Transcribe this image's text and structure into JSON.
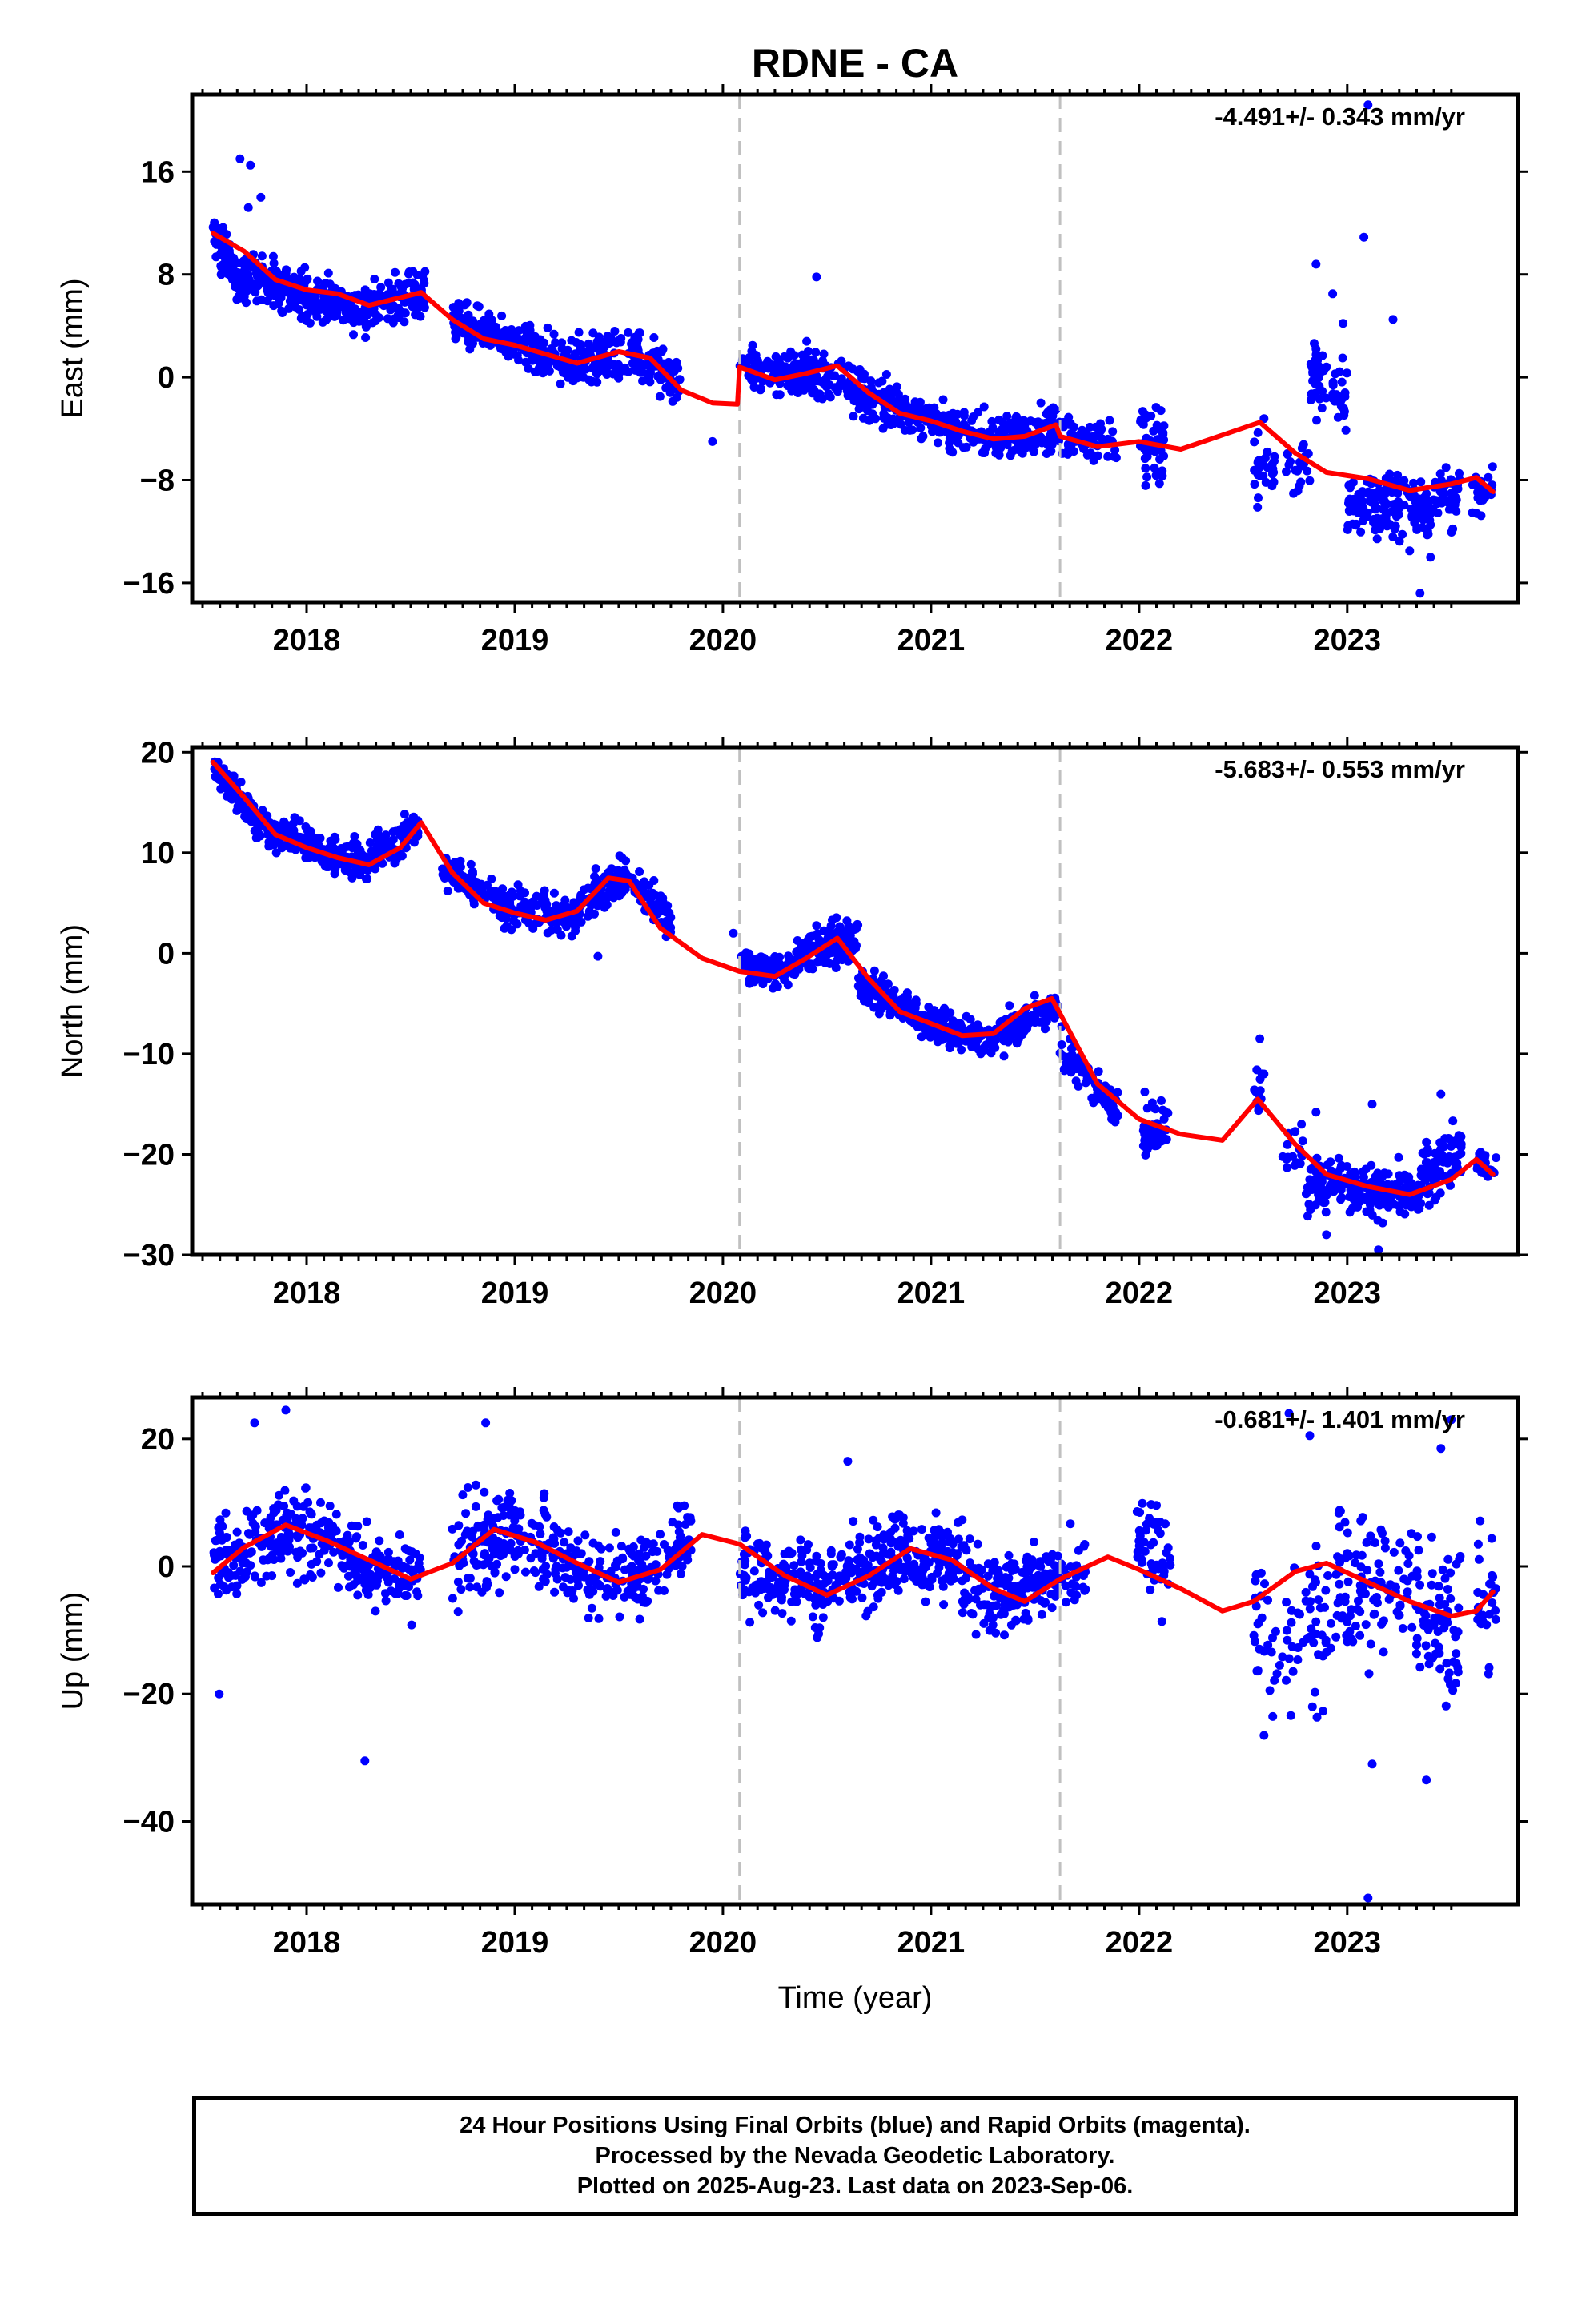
{
  "title": "RDNE - CA",
  "xlabel": "Time (year)",
  "footer": {
    "line1": "24 Hour Positions Using Final Orbits (blue) and Rapid Orbits (magenta).",
    "line2": "Processed by the Nevada Geodetic Laboratory.",
    "line3": "Plotted on 2025-Aug-23. Last data on 2023-Sep-06."
  },
  "colors": {
    "points": "#0000ff",
    "fit": "#ff0000",
    "steps": "#c0c0c0",
    "axis": "#000000"
  },
  "chart_data": [
    {
      "type": "scatter",
      "ylabel": "East (mm)",
      "annotation": "-4.491+/- 0.343 mm/yr",
      "xlim": [
        2017.45,
        2023.82
      ],
      "ylim": [
        -17.5,
        22
      ],
      "yticks": [
        -16,
        -8,
        0,
        8,
        16
      ],
      "xticks": [
        2018,
        2019,
        2020,
        2021,
        2022,
        2023
      ],
      "step_lines": [
        2020.08,
        2021.62
      ],
      "fit": {
        "x": [
          2017.55,
          2017.7,
          2017.85,
          2018.0,
          2018.15,
          2018.3,
          2018.45,
          2018.55,
          2018.7,
          2018.85,
          2019.0,
          2019.15,
          2019.3,
          2019.5,
          2019.65,
          2019.8,
          2019.95,
          2020.07,
          2020.08,
          2020.25,
          2020.4,
          2020.55,
          2020.7,
          2020.85,
          2021.0,
          2021.15,
          2021.3,
          2021.45,
          2021.6,
          2021.62,
          2021.8,
          2022.0,
          2022.2,
          2022.4,
          2022.58,
          2022.75,
          2022.9,
          2023.1,
          2023.3,
          2023.5,
          2023.62,
          2023.7
        ],
        "y": [
          11.2,
          9.8,
          7.6,
          6.8,
          6.5,
          5.6,
          6.2,
          6.6,
          4.5,
          3.0,
          2.5,
          1.8,
          1.1,
          2.0,
          1.5,
          -1.0,
          -2.0,
          -2.1,
          0.8,
          -0.2,
          0.3,
          0.9,
          -1.2,
          -2.8,
          -3.4,
          -4.2,
          -4.8,
          -4.6,
          -3.7,
          -4.6,
          -5.4,
          -5.0,
          -5.6,
          -4.5,
          -3.5,
          -5.9,
          -7.4,
          -7.9,
          -8.8,
          -8.3,
          -7.8,
          -8.9
        ]
      },
      "clusters": [
        [
          2017.55,
          2017.7,
          11.0,
          7.0,
          1.2,
          90
        ],
        [
          2017.7,
          2018.0,
          7.8,
          6.6,
          1.3,
          140
        ],
        [
          2018.0,
          2018.3,
          6.2,
          5.2,
          1.2,
          130
        ],
        [
          2018.3,
          2018.57,
          5.6,
          6.7,
          1.3,
          110
        ],
        [
          2018.7,
          2019.0,
          4.3,
          2.6,
          1.1,
          120
        ],
        [
          2019.0,
          2019.3,
          2.5,
          1.1,
          1.2,
          110
        ],
        [
          2019.3,
          2019.6,
          1.2,
          2.0,
          1.3,
          110
        ],
        [
          2019.6,
          2019.8,
          1.8,
          -0.5,
          1.3,
          60
        ],
        [
          2020.08,
          2020.4,
          0.8,
          0.3,
          1.3,
          110
        ],
        [
          2020.4,
          2020.7,
          0.4,
          -1.2,
          1.5,
          110
        ],
        [
          2020.7,
          2021.0,
          -1.5,
          -3.4,
          1.1,
          110
        ],
        [
          2021.0,
          2021.35,
          -3.5,
          -4.8,
          1.1,
          120
        ],
        [
          2021.35,
          2021.62,
          -4.7,
          -3.7,
          1.2,
          110
        ],
        [
          2021.62,
          2021.9,
          -4.6,
          -5.6,
          1.2,
          70
        ],
        [
          2022.0,
          2022.12,
          -5.5,
          -5.5,
          2.3,
          50
        ],
        [
          2022.55,
          2022.65,
          -6.8,
          -6.8,
          1.8,
          30
        ],
        [
          2022.7,
          2022.82,
          -7.0,
          -7.0,
          1.5,
          20
        ],
        [
          2022.82,
          2022.9,
          -0.5,
          -0.5,
          2.0,
          35
        ],
        [
          2022.93,
          2023.0,
          -1.5,
          -1.5,
          1.5,
          25
        ],
        [
          2023.0,
          2023.4,
          -9.7,
          -10.2,
          1.7,
          170
        ],
        [
          2023.4,
          2023.55,
          -9.5,
          -9.3,
          1.5,
          50
        ],
        [
          2023.6,
          2023.7,
          -8.9,
          -8.9,
          1.2,
          25
        ]
      ],
      "outliers": [
        [
          2017.68,
          17.0
        ],
        [
          2017.73,
          16.5
        ],
        [
          2017.78,
          14.0
        ],
        [
          2017.72,
          13.2
        ],
        [
          2019.95,
          -5.0
        ],
        [
          2020.45,
          7.8
        ],
        [
          2022.85,
          8.8
        ],
        [
          2022.93,
          6.5
        ],
        [
          2022.98,
          4.2
        ],
        [
          2023.08,
          10.9
        ],
        [
          2023.22,
          4.5
        ],
        [
          2023.1,
          21.2
        ],
        [
          2022.85,
          2.2
        ],
        [
          2023.3,
          -13.5
        ],
        [
          2023.35,
          -16.8
        ],
        [
          2023.4,
          -14.0
        ]
      ]
    },
    {
      "type": "scatter",
      "ylabel": "North (mm)",
      "annotation": "-5.683+/- 0.553 mm/yr",
      "xlim": [
        2017.45,
        2023.82
      ],
      "ylim": [
        -30,
        20.5
      ],
      "yticks": [
        -30,
        -20,
        -10,
        0,
        10,
        20
      ],
      "xticks": [
        2018,
        2019,
        2020,
        2021,
        2022,
        2023
      ],
      "step_lines": [
        2020.08,
        2021.62
      ],
      "fit": {
        "x": [
          2017.55,
          2017.7,
          2017.85,
          2018.0,
          2018.15,
          2018.3,
          2018.45,
          2018.55,
          2018.7,
          2018.85,
          2019.0,
          2019.15,
          2019.3,
          2019.45,
          2019.55,
          2019.7,
          2019.9,
          2020.08,
          2020.25,
          2020.4,
          2020.55,
          2020.7,
          2020.85,
          2021.0,
          2021.15,
          2021.3,
          2021.45,
          2021.58,
          2021.62,
          2021.8,
          2022.0,
          2022.2,
          2022.4,
          2022.57,
          2022.75,
          2022.9,
          2023.1,
          2023.3,
          2023.5,
          2023.62,
          2023.7
        ],
        "y": [
          19.0,
          15.5,
          11.8,
          10.5,
          9.5,
          8.8,
          10.5,
          13.0,
          8.0,
          5.0,
          4.0,
          3.3,
          4.2,
          7.5,
          7.2,
          2.5,
          -0.5,
          -1.8,
          -2.3,
          -0.5,
          1.5,
          -2.5,
          -5.8,
          -7.0,
          -8.2,
          -8.0,
          -5.5,
          -4.5,
          -6.0,
          -13.0,
          -16.5,
          -18.0,
          -18.6,
          -14.5,
          -19.0,
          -22.0,
          -23.2,
          -24.0,
          -22.5,
          -20.5,
          -22.0
        ]
      },
      "clusters": [
        [
          2017.55,
          2017.75,
          18.5,
          14.0,
          1.1,
          100
        ],
        [
          2017.75,
          2018.05,
          12.8,
          10.6,
          1.1,
          120
        ],
        [
          2018.05,
          2018.3,
          10.2,
          8.8,
          1.2,
          110
        ],
        [
          2018.3,
          2018.55,
          9.5,
          12.8,
          1.4,
          110
        ],
        [
          2018.65,
          2018.95,
          8.5,
          4.7,
          1.2,
          110
        ],
        [
          2018.95,
          2019.3,
          4.5,
          3.8,
          1.4,
          120
        ],
        [
          2019.3,
          2019.55,
          4.5,
          7.8,
          1.3,
          110
        ],
        [
          2019.55,
          2019.75,
          7.5,
          3.5,
          1.4,
          70
        ],
        [
          2020.08,
          2020.35,
          -1.3,
          -1.8,
          1.0,
          100
        ],
        [
          2020.35,
          2020.65,
          0.0,
          1.5,
          1.6,
          120
        ],
        [
          2020.65,
          2020.95,
          -3.0,
          -6.2,
          1.2,
          110
        ],
        [
          2020.95,
          2021.3,
          -6.8,
          -8.8,
          1.2,
          120
        ],
        [
          2021.3,
          2021.62,
          -8.2,
          -5.0,
          1.3,
          110
        ],
        [
          2021.62,
          2021.9,
          -9.0,
          -16.0,
          1.3,
          90
        ],
        [
          2022.02,
          2022.14,
          -17.5,
          -17.5,
          1.8,
          45
        ],
        [
          2022.55,
          2022.6,
          -13.5,
          -13.5,
          1.5,
          15
        ],
        [
          2022.68,
          2022.8,
          -19.5,
          -19.5,
          1.5,
          15
        ],
        [
          2022.8,
          2022.95,
          -23.0,
          -23.0,
          1.8,
          60
        ],
        [
          2022.95,
          2023.35,
          -23.3,
          -24.2,
          1.7,
          160
        ],
        [
          2023.35,
          2023.55,
          -23.0,
          -19.0,
          2.2,
          80
        ],
        [
          2023.62,
          2023.72,
          -21.0,
          -21.0,
          1.0,
          25
        ]
      ],
      "outliers": [
        [
          2019.4,
          -0.3
        ],
        [
          2020.05,
          2.0
        ],
        [
          2022.58,
          -8.5
        ],
        [
          2022.6,
          -12.0
        ],
        [
          2023.12,
          -15.0
        ],
        [
          2022.85,
          -15.8
        ],
        [
          2022.9,
          -28.0
        ],
        [
          2023.15,
          -29.5
        ],
        [
          2022.78,
          -17.0
        ],
        [
          2023.45,
          -14.0
        ]
      ]
    },
    {
      "type": "scatter",
      "ylabel": "Up (mm)",
      "annotation": "-0.681+/- 1.401 mm/yr",
      "xlim": [
        2017.45,
        2023.82
      ],
      "ylim": [
        -53,
        26.5
      ],
      "yticks": [
        -40,
        -20,
        0,
        20
      ],
      "xticks": [
        2018,
        2019,
        2020,
        2021,
        2022,
        2023
      ],
      "step_lines": [
        2020.08,
        2021.62
      ],
      "fit": {
        "x": [
          2017.55,
          2017.7,
          2017.9,
          2018.1,
          2018.3,
          2018.5,
          2018.7,
          2018.9,
          2019.1,
          2019.3,
          2019.5,
          2019.7,
          2019.9,
          2020.08,
          2020.3,
          2020.5,
          2020.7,
          2020.9,
          2021.1,
          2021.3,
          2021.45,
          2021.62,
          2021.85,
          2022.0,
          2022.2,
          2022.4,
          2022.55,
          2022.75,
          2022.9,
          2023.1,
          2023.3,
          2023.5,
          2023.62,
          2023.7
        ],
        "y": [
          -1.0,
          3.0,
          6.5,
          4.0,
          1.0,
          -2.0,
          0.5,
          5.8,
          3.8,
          0.5,
          -2.5,
          -0.5,
          5.0,
          3.5,
          -1.5,
          -4.5,
          -1.5,
          2.8,
          1.0,
          -3.5,
          -5.5,
          -2.0,
          1.5,
          -0.5,
          -3.5,
          -7.0,
          -5.5,
          -0.8,
          0.5,
          -2.5,
          -5.5,
          -7.8,
          -7.0,
          -4.0
        ]
      },
      "clusters": [
        [
          2017.55,
          2017.85,
          0.0,
          4.0,
          5.0,
          100
        ],
        [
          2017.85,
          2018.15,
          6.0,
          4.0,
          4.5,
          100
        ],
        [
          2018.15,
          2018.55,
          2.0,
          -2.0,
          4.5,
          130
        ],
        [
          2018.7,
          2019.0,
          2.0,
          5.5,
          5.5,
          110
        ],
        [
          2019.0,
          2019.35,
          4.0,
          0.0,
          4.5,
          100
        ],
        [
          2019.35,
          2019.7,
          -2.0,
          0.0,
          4.5,
          100
        ],
        [
          2019.7,
          2019.85,
          2.5,
          5.0,
          4.0,
          40
        ],
        [
          2020.08,
          2020.45,
          0.0,
          -3.5,
          4.5,
          130
        ],
        [
          2020.45,
          2020.8,
          -4.0,
          1.0,
          4.5,
          120
        ],
        [
          2020.8,
          2021.15,
          2.5,
          0.5,
          4.5,
          130
        ],
        [
          2021.15,
          2021.45,
          -2.0,
          -5.0,
          4.5,
          110
        ],
        [
          2021.45,
          2021.75,
          -4.0,
          0.5,
          4.5,
          90
        ],
        [
          2021.98,
          2022.15,
          5.0,
          0.0,
          6.0,
          50
        ],
        [
          2022.55,
          2022.65,
          -10.0,
          -10.0,
          8.0,
          25
        ],
        [
          2022.65,
          2022.8,
          -12.0,
          -12.0,
          8.0,
          20
        ],
        [
          2022.8,
          2022.95,
          -10.0,
          -10.0,
          9.0,
          35
        ],
        [
          2022.95,
          2023.35,
          -2.0,
          -4.0,
          8.0,
          110
        ],
        [
          2023.35,
          2023.55,
          -8.0,
          -8.0,
          9.0,
          60
        ],
        [
          2023.62,
          2023.72,
          -4.0,
          -4.0,
          7.0,
          25
        ]
      ],
      "outliers": [
        [
          2017.58,
          -20.0
        ],
        [
          2017.75,
          22.5
        ],
        [
          2017.9,
          24.5
        ],
        [
          2018.28,
          -30.5
        ],
        [
          2018.86,
          22.5
        ],
        [
          2020.6,
          16.5
        ],
        [
          2022.72,
          24.0
        ],
        [
          2022.6,
          -26.5
        ],
        [
          2023.12,
          -31.0
        ],
        [
          2023.1,
          -52.0
        ],
        [
          2023.38,
          -33.5
        ],
        [
          2023.5,
          23.0
        ],
        [
          2023.45,
          18.5
        ],
        [
          2022.82,
          20.5
        ]
      ]
    }
  ]
}
